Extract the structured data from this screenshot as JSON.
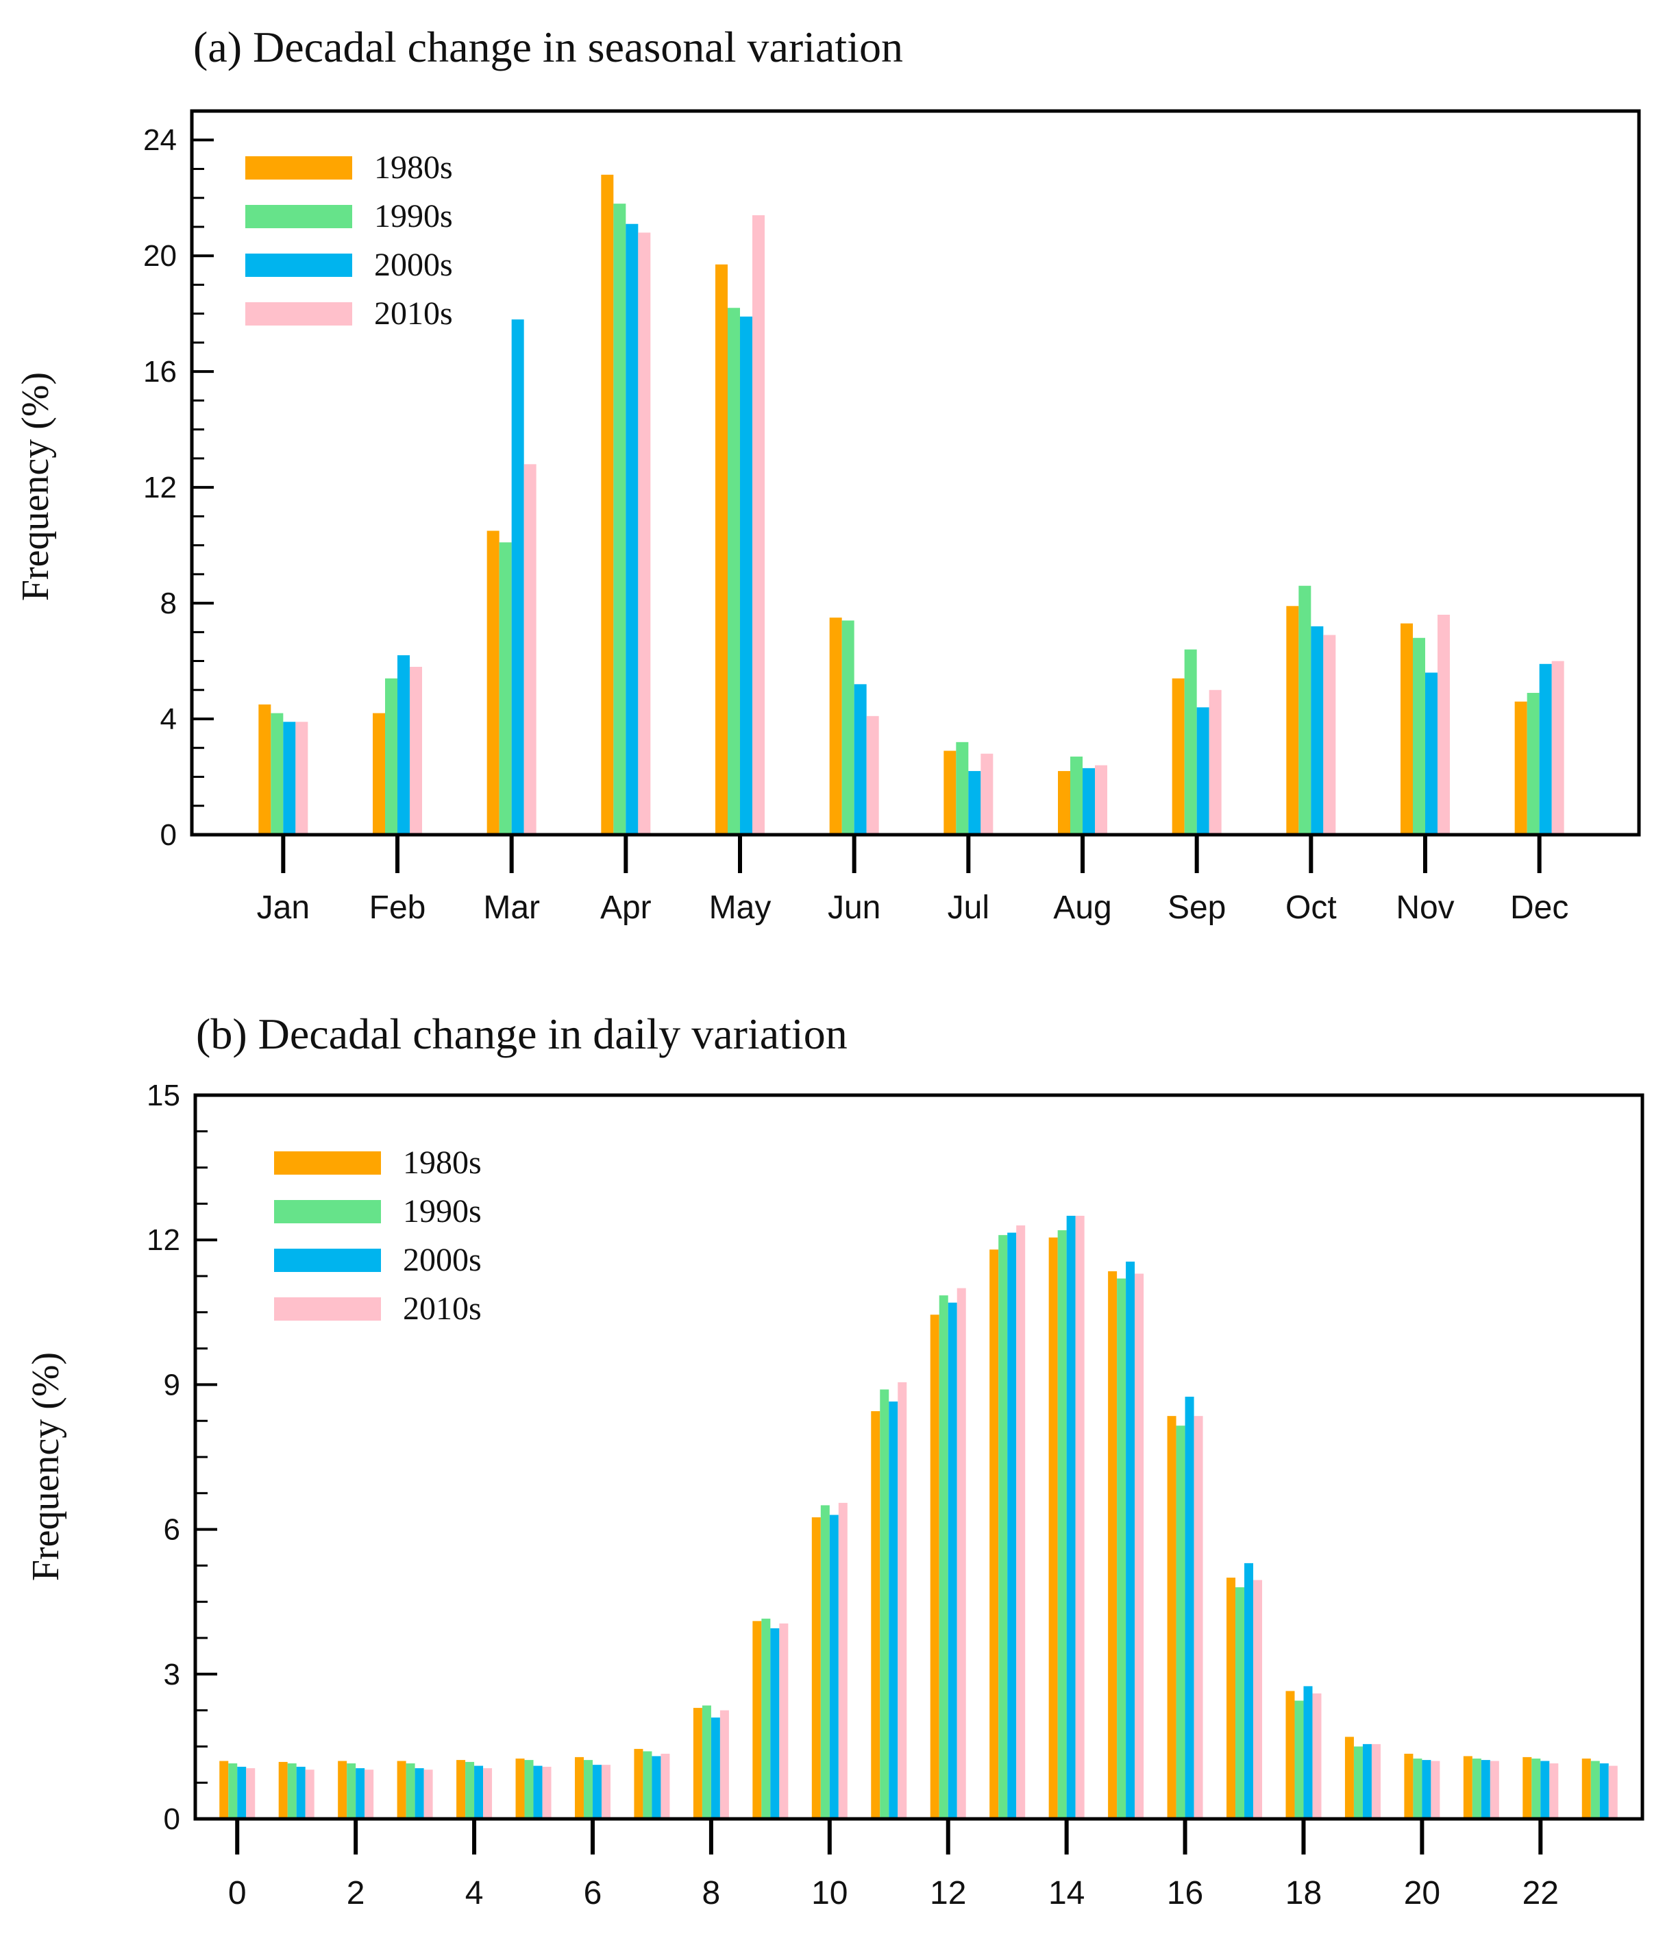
{
  "colors": {
    "s1980": "#FFA500",
    "s1990": "#66E38A",
    "s2000": "#00B4EE",
    "s2010": "#FFC0CB"
  },
  "chart_data": [
    {
      "type": "bar",
      "title": "(a) Decadal change in seasonal variation",
      "xlabel": "",
      "ylabel": "Frequency (%)",
      "ylim": [
        0,
        25
      ],
      "yticks": [
        0,
        4,
        8,
        12,
        16,
        20,
        24
      ],
      "legend_position": "top-left",
      "grid": false,
      "categories": [
        "Jan",
        "Feb",
        "Mar",
        "Apr",
        "May",
        "Jun",
        "Jul",
        "Aug",
        "Sep",
        "Oct",
        "Nov",
        "Dec"
      ],
      "series": [
        {
          "name": "1980s",
          "color": "#FFA500",
          "values": [
            4.5,
            4.2,
            10.5,
            22.8,
            19.7,
            7.5,
            2.9,
            2.2,
            5.4,
            7.9,
            7.3,
            4.6
          ]
        },
        {
          "name": "1990s",
          "color": "#66E38A",
          "values": [
            4.2,
            5.4,
            10.1,
            21.8,
            18.2,
            7.4,
            3.2,
            2.7,
            6.4,
            8.6,
            6.8,
            4.9
          ]
        },
        {
          "name": "2000s",
          "color": "#00B4EE",
          "values": [
            3.9,
            6.2,
            17.8,
            21.1,
            17.9,
            5.2,
            2.2,
            2.3,
            4.4,
            7.2,
            5.6,
            5.9
          ]
        },
        {
          "name": "2010s",
          "color": "#FFC0CB",
          "values": [
            3.9,
            5.8,
            12.8,
            20.8,
            21.4,
            4.1,
            2.8,
            2.4,
            5.0,
            6.9,
            7.6,
            6.0
          ]
        }
      ]
    },
    {
      "type": "bar",
      "title": "(b) Decadal change in daily variation",
      "xlabel": "",
      "ylabel": "Frequency (%)",
      "ylim": [
        0,
        15
      ],
      "yticks": [
        0,
        3,
        6,
        9,
        12,
        15
      ],
      "legend_position": "top-left",
      "grid": false,
      "categories": [
        "0",
        "1",
        "2",
        "3",
        "4",
        "5",
        "6",
        "7",
        "8",
        "9",
        "10",
        "11",
        "12",
        "13",
        "14",
        "15",
        "16",
        "17",
        "18",
        "19",
        "20",
        "21",
        "22",
        "23"
      ],
      "xtick_labels": [
        "0",
        "2",
        "4",
        "6",
        "8",
        "10",
        "12",
        "14",
        "16",
        "18",
        "20",
        "22"
      ],
      "series": [
        {
          "name": "1980s",
          "color": "#FFA500",
          "values": [
            1.2,
            1.18,
            1.2,
            1.2,
            1.22,
            1.25,
            1.28,
            1.45,
            2.3,
            4.1,
            6.25,
            8.45,
            10.45,
            11.8,
            12.05,
            11.35,
            8.35,
            5.0,
            2.65,
            1.7,
            1.35,
            1.3,
            1.28,
            1.25
          ]
        },
        {
          "name": "1990s",
          "color": "#66E38A",
          "values": [
            1.15,
            1.15,
            1.15,
            1.15,
            1.18,
            1.22,
            1.22,
            1.4,
            2.35,
            4.15,
            6.5,
            8.9,
            10.85,
            12.1,
            12.2,
            11.2,
            8.15,
            4.8,
            2.45,
            1.5,
            1.25,
            1.25,
            1.25,
            1.2
          ]
        },
        {
          "name": "2000s",
          "color": "#00B4EE",
          "values": [
            1.08,
            1.08,
            1.05,
            1.05,
            1.1,
            1.1,
            1.12,
            1.3,
            2.1,
            3.95,
            6.3,
            8.65,
            10.7,
            12.15,
            12.5,
            11.55,
            8.75,
            5.3,
            2.75,
            1.55,
            1.22,
            1.22,
            1.2,
            1.15
          ]
        },
        {
          "name": "2010s",
          "color": "#FFC0CB",
          "values": [
            1.05,
            1.02,
            1.02,
            1.02,
            1.05,
            1.08,
            1.12,
            1.35,
            2.25,
            4.05,
            6.55,
            9.05,
            11.0,
            12.3,
            12.5,
            11.3,
            8.35,
            4.95,
            2.6,
            1.55,
            1.2,
            1.2,
            1.15,
            1.1
          ]
        }
      ]
    }
  ]
}
